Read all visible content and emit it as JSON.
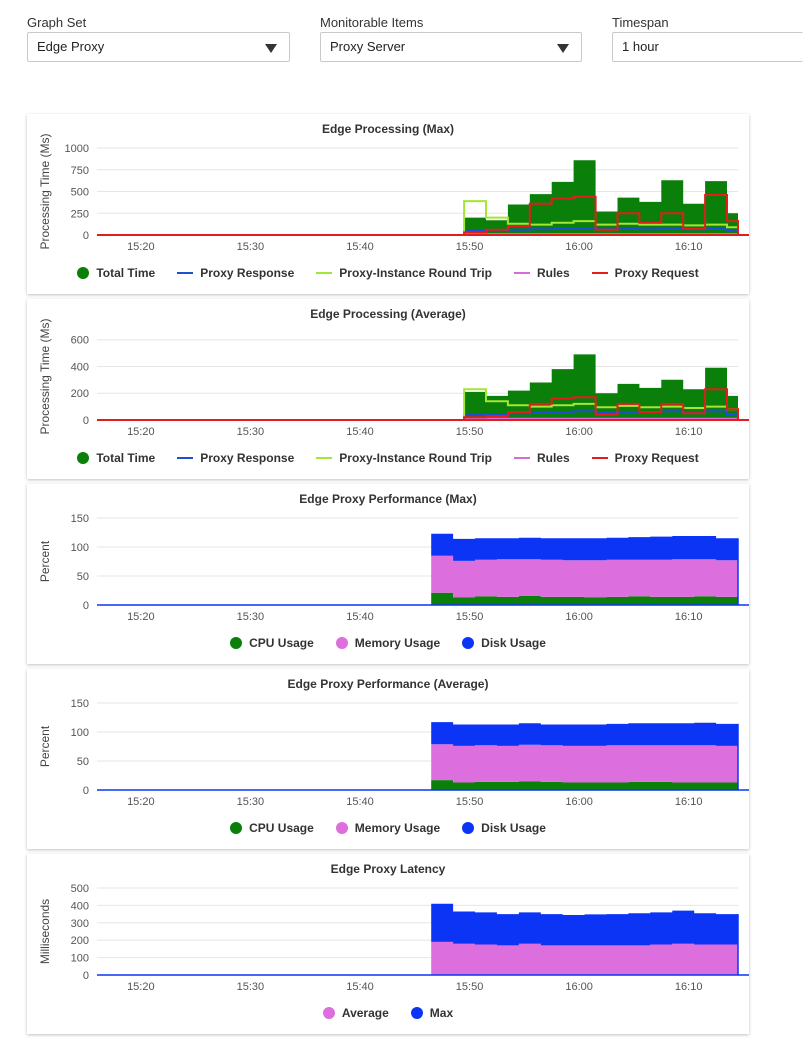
{
  "controls": {
    "graph_set": {
      "label": "Graph Set",
      "value": "Edge Proxy"
    },
    "monitorable_items": {
      "label": "Monitorable Items",
      "value": "Proxy Server"
    },
    "timespan": {
      "label": "Timespan",
      "value": "1 hour"
    }
  },
  "colors": {
    "total": "#0a7f0a",
    "proxy_response": "#1f4fd1",
    "round_trip": "#a3e635",
    "rules": "#d56bd5",
    "proxy_request": "#e11d1d",
    "cpu": "#0a7f0a",
    "memory": "#dd6edd",
    "disk": "#0b34f5",
    "average": "#dd6edd",
    "max": "#0b34f5"
  },
  "charts": [
    {
      "id": "edge-processing-max",
      "chart_data": {
        "type": "area",
        "title": "Edge Processing (Max)",
        "ylabel": "Processing Time (Ms)",
        "ylim": [
          0,
          1000
        ],
        "yticks": [
          0,
          250,
          500,
          750,
          1000
        ],
        "xlim": [
          16.0,
          74.5
        ],
        "xticks": [
          {
            "v": 20,
            "l": "15:20"
          },
          {
            "v": 30,
            "l": "15:30"
          },
          {
            "v": 40,
            "l": "15:40"
          },
          {
            "v": 50,
            "l": "15:50"
          },
          {
            "v": 60,
            "l": "16:00"
          },
          {
            "v": 70,
            "l": "16:10"
          }
        ],
        "x": [
          51.5,
          53.5,
          55.5,
          57.5,
          59.5,
          61.5,
          63.5,
          65.5,
          67.5,
          69.5,
          71.5,
          73.5,
          75.5
        ],
        "series": [
          {
            "name": "Total Time",
            "kind": "area",
            "color": "#0a7f0a",
            "values": [
              200,
              170,
              350,
              470,
              610,
              860,
              270,
              430,
              380,
              630,
              360,
              620,
              250
            ]
          },
          {
            "name": "Proxy Response",
            "kind": "line",
            "color": "#1f4fd1",
            "values": [
              50,
              55,
              60,
              65,
              70,
              75,
              65,
              70,
              65,
              75,
              65,
              75,
              55
            ]
          },
          {
            "name": "Proxy-Instance Round Trip",
            "kind": "line",
            "color": "#a3e635",
            "values": [
              390,
              200,
              130,
              120,
              140,
              160,
              120,
              130,
              120,
              120,
              110,
              120,
              90
            ]
          },
          {
            "name": "Rules",
            "kind": "line",
            "color": "#d56bd5",
            "values": [
              10,
              10,
              10,
              10,
              10,
              10,
              10,
              10,
              10,
              10,
              10,
              10,
              10
            ]
          },
          {
            "name": "Proxy Request",
            "kind": "line",
            "color": "#e11d1d",
            "values": [
              30,
              60,
              100,
              360,
              420,
              440,
              60,
              250,
              140,
              250,
              70,
              460,
              160
            ]
          }
        ],
        "legend_kind": [
          "dot",
          "line",
          "line",
          "line",
          "line"
        ],
        "grid": true,
        "legend": "bottom"
      }
    },
    {
      "id": "edge-processing-average",
      "chart_data": {
        "type": "area",
        "title": "Edge Processing (Average)",
        "ylabel": "Processing Time (Ms)",
        "ylim": [
          0,
          650
        ],
        "yticks": [
          0,
          200,
          400,
          600
        ],
        "xlim": [
          16.0,
          74.5
        ],
        "xticks": [
          {
            "v": 20,
            "l": "15:20"
          },
          {
            "v": 30,
            "l": "15:30"
          },
          {
            "v": 40,
            "l": "15:40"
          },
          {
            "v": 50,
            "l": "15:50"
          },
          {
            "v": 60,
            "l": "16:00"
          },
          {
            "v": 70,
            "l": "16:10"
          }
        ],
        "x": [
          51.5,
          53.5,
          55.5,
          57.5,
          59.5,
          61.5,
          63.5,
          65.5,
          67.5,
          69.5,
          71.5,
          73.5,
          75.5
        ],
        "series": [
          {
            "name": "Total Time",
            "kind": "area",
            "color": "#0a7f0a",
            "values": [
              210,
              180,
              220,
              280,
              380,
              490,
              200,
              270,
              240,
              300,
              230,
              390,
              180
            ]
          },
          {
            "name": "Proxy Response",
            "kind": "line",
            "color": "#1f4fd1",
            "values": [
              40,
              45,
              50,
              55,
              60,
              65,
              55,
              60,
              55,
              65,
              55,
              65,
              45
            ]
          },
          {
            "name": "Proxy-Instance Round Trip",
            "kind": "line",
            "color": "#a3e635",
            "values": [
              230,
              140,
              110,
              100,
              110,
              120,
              95,
              105,
              95,
              100,
              90,
              100,
              80
            ]
          },
          {
            "name": "Rules",
            "kind": "line",
            "color": "#d56bd5",
            "values": [
              10,
              10,
              10,
              10,
              10,
              10,
              10,
              10,
              10,
              10,
              10,
              10,
              10
            ]
          },
          {
            "name": "Proxy Request",
            "kind": "line",
            "color": "#e11d1d",
            "values": [
              20,
              30,
              60,
              120,
              160,
              170,
              40,
              120,
              60,
              120,
              50,
              230,
              80
            ]
          }
        ],
        "legend_kind": [
          "dot",
          "line",
          "line",
          "line",
          "line"
        ],
        "grid": true,
        "legend": "bottom"
      }
    },
    {
      "id": "edge-proxy-performance-max",
      "chart_data": {
        "type": "area",
        "stacked": true,
        "title": "Edge Proxy Performance (Max)",
        "ylabel": "Percent",
        "ylim": [
          0,
          150
        ],
        "yticks": [
          0,
          50,
          100,
          150
        ],
        "xlim": [
          16.0,
          74.5
        ],
        "xticks": [
          {
            "v": 20,
            "l": "15:20"
          },
          {
            "v": 30,
            "l": "15:30"
          },
          {
            "v": 40,
            "l": "15:40"
          },
          {
            "v": 50,
            "l": "15:50"
          },
          {
            "v": 60,
            "l": "16:00"
          },
          {
            "v": 70,
            "l": "16:10"
          }
        ],
        "x": [
          48.5,
          50.5,
          52.5,
          54.5,
          56.5,
          58.5,
          60.5,
          62.5,
          64.5,
          66.5,
          68.5,
          70.5,
          72.5,
          74.5
        ],
        "series": [
          {
            "name": "CPU Usage",
            "color": "#0a7f0a",
            "values": [
              21,
              13,
              15,
              14,
              16,
              14,
              14,
              13,
              14,
              15,
              14,
              14,
              15,
              14
            ]
          },
          {
            "name": "Memory Usage",
            "color": "#dd6edd",
            "values": [
              64,
              63,
              63,
              65,
              63,
              64,
              63,
              64,
              64,
              63,
              64,
              65,
              64,
              63
            ]
          },
          {
            "name": "Disk Usage",
            "color": "#0b34f5",
            "values": [
              38,
              38,
              37,
              36,
              37,
              37,
              38,
              38,
              38,
              39,
              40,
              40,
              40,
              38
            ]
          }
        ],
        "legend_kind": [
          "dot",
          "dot",
          "dot"
        ],
        "grid": true,
        "legend": "bottom"
      }
    },
    {
      "id": "edge-proxy-performance-average",
      "chart_data": {
        "type": "area",
        "stacked": true,
        "title": "Edge Proxy Performance (Average)",
        "ylabel": "Percent",
        "ylim": [
          0,
          150
        ],
        "yticks": [
          0,
          50,
          100,
          150
        ],
        "xlim": [
          16.0,
          74.5
        ],
        "xticks": [
          {
            "v": 20,
            "l": "15:20"
          },
          {
            "v": 30,
            "l": "15:30"
          },
          {
            "v": 40,
            "l": "15:40"
          },
          {
            "v": 50,
            "l": "15:50"
          },
          {
            "v": 60,
            "l": "16:00"
          },
          {
            "v": 70,
            "l": "16:10"
          }
        ],
        "x": [
          48.5,
          50.5,
          52.5,
          54.5,
          56.5,
          58.5,
          60.5,
          62.5,
          64.5,
          66.5,
          68.5,
          70.5,
          72.5,
          74.5
        ],
        "series": [
          {
            "name": "CPU Usage",
            "color": "#0a7f0a",
            "values": [
              17,
              13,
              14,
              14,
              15,
              14,
              13,
              13,
              13,
              14,
              14,
              13,
              13,
              13
            ]
          },
          {
            "name": "Memory Usage",
            "color": "#dd6edd",
            "values": [
              62,
              63,
              63,
              62,
              63,
              63,
              63,
              63,
              64,
              63,
              63,
              64,
              64,
              63
            ]
          },
          {
            "name": "Disk Usage",
            "color": "#0b34f5",
            "values": [
              38,
              37,
              36,
              37,
              37,
              36,
              37,
              37,
              37,
              38,
              38,
              38,
              39,
              38
            ]
          }
        ],
        "legend_kind": [
          "dot",
          "dot",
          "dot"
        ],
        "grid": true,
        "legend": "bottom"
      }
    },
    {
      "id": "edge-proxy-latency",
      "chart_data": {
        "type": "area",
        "stacked": true,
        "title": "Edge Proxy Latency",
        "ylabel": "Milliseconds",
        "ylim": [
          0,
          500
        ],
        "yticks": [
          0,
          100,
          200,
          300,
          400,
          500
        ],
        "xlim": [
          16.0,
          74.5
        ],
        "xticks": [
          {
            "v": 20,
            "l": "15:20"
          },
          {
            "v": 30,
            "l": "15:30"
          },
          {
            "v": 40,
            "l": "15:40"
          },
          {
            "v": 50,
            "l": "15:50"
          },
          {
            "v": 60,
            "l": "16:00"
          },
          {
            "v": 70,
            "l": "16:10"
          }
        ],
        "x": [
          48.5,
          50.5,
          52.5,
          54.5,
          56.5,
          58.5,
          60.5,
          62.5,
          64.5,
          66.5,
          68.5,
          70.5,
          72.5,
          74.5
        ],
        "series": [
          {
            "name": "Average",
            "color": "#dd6edd",
            "values": [
              190,
              180,
              175,
              170,
              180,
              170,
              170,
              170,
              170,
              170,
              175,
              180,
              175,
              175
            ]
          },
          {
            "name": "Max",
            "color": "#0b34f5",
            "values": [
              220,
              185,
              185,
              180,
              180,
              180,
              175,
              178,
              180,
              185,
              185,
              190,
              180,
              175
            ]
          }
        ],
        "legend_kind": [
          "dot",
          "dot"
        ],
        "grid": true,
        "legend": "bottom"
      }
    }
  ]
}
